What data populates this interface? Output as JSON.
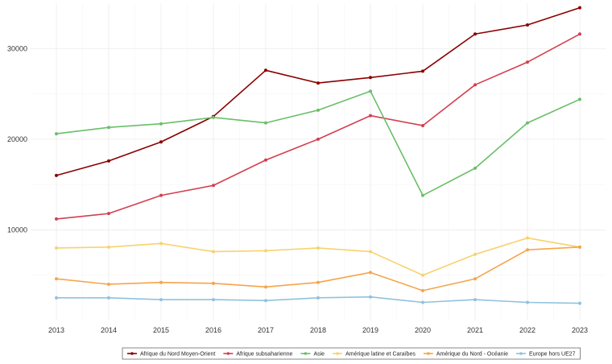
{
  "chart_data": {
    "type": "line",
    "title": "",
    "xlabel": "",
    "ylabel": "",
    "x": [
      2013,
      2014,
      2015,
      2016,
      2017,
      2018,
      2019,
      2020,
      2021,
      2022,
      2023
    ],
    "ylim": [
      0,
      35000
    ],
    "y_ticks": [
      10000,
      20000,
      30000
    ],
    "y_tick_labels": [
      "10000",
      "20000",
      "30000"
    ],
    "x_tick_labels": [
      "2013",
      "2014",
      "2015",
      "2016",
      "2017",
      "2018",
      "2019",
      "2020",
      "2021",
      "2022",
      "2023"
    ],
    "grid": true,
    "legend_position": "bottom",
    "series": [
      {
        "name": "Afrique du Nord Moyen-Orient",
        "color": "#8b0000",
        "values": [
          16000,
          17600,
          19700,
          22500,
          27600,
          26200,
          26800,
          27500,
          31600,
          32600,
          34500
        ]
      },
      {
        "name": "Afrique subsaharienne",
        "color": "#d43f4f",
        "values": [
          11200,
          11800,
          13800,
          14900,
          17700,
          20000,
          22600,
          21500,
          26000,
          28500,
          31600
        ]
      },
      {
        "name": "Asie",
        "color": "#6abf69",
        "values": [
          20600,
          21300,
          21700,
          22400,
          21800,
          23200,
          25300,
          13800,
          16800,
          21800,
          24400
        ]
      },
      {
        "name": "Amérique latine et Caraïbes",
        "color": "#f7d26e",
        "values": [
          8000,
          8100,
          8500,
          7600,
          7700,
          8000,
          7600,
          5000,
          7300,
          9100,
          8100
        ]
      },
      {
        "name": "Amérique du Nord - Océanie",
        "color": "#f5a54a",
        "values": [
          4600,
          4000,
          4200,
          4100,
          3700,
          4200,
          5300,
          3300,
          4600,
          7800,
          8100
        ]
      },
      {
        "name": "Europe hors UE27",
        "color": "#8fc2df",
        "values": [
          2500,
          2500,
          2300,
          2300,
          2200,
          2500,
          2600,
          2000,
          2300,
          2000,
          1900
        ]
      }
    ]
  }
}
